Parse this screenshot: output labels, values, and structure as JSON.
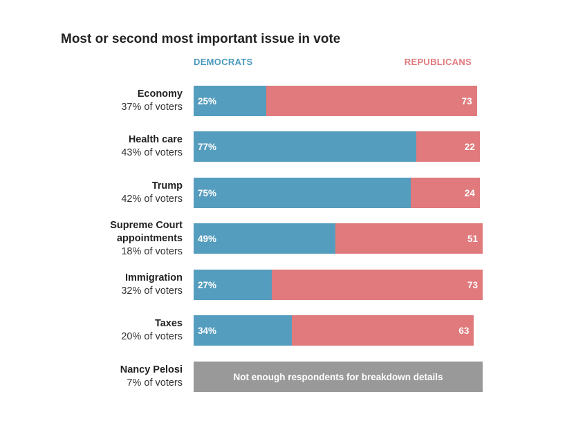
{
  "chart_data": {
    "type": "bar",
    "title": "Most or second most important issue in vote",
    "orientation": "horizontal",
    "stacked": true,
    "legend": [
      "DEMOCRATS",
      "REPUBLICANS"
    ],
    "legend_placement": "top",
    "categories": [
      {
        "name": "Economy",
        "share": "37% of voters",
        "dem": 25,
        "rep": 73,
        "dem_label": "25%",
        "rep_label": "73"
      },
      {
        "name": "Health care",
        "share": "43% of voters",
        "dem": 77,
        "rep": 22,
        "dem_label": "77%",
        "rep_label": "22"
      },
      {
        "name": "Trump",
        "share": "42% of voters",
        "dem": 75,
        "rep": 24,
        "dem_label": "75%",
        "rep_label": "24"
      },
      {
        "name": "Supreme Court appointments",
        "share": "18% of voters",
        "dem": 49,
        "rep": 51,
        "dem_label": "49%",
        "rep_label": "51"
      },
      {
        "name": "Immigration",
        "share": "32% of voters",
        "dem": 27,
        "rep": 73,
        "dem_label": "27%",
        "rep_label": "73"
      },
      {
        "name": "Taxes",
        "share": "20% of voters",
        "dem": 34,
        "rep": 63,
        "dem_label": "34%",
        "rep_label": "63"
      },
      {
        "name": "Nancy Pelosi",
        "share": "7% of voters",
        "dem": null,
        "rep": null,
        "note": "Not enough respondents for breakdown details"
      }
    ],
    "series": [
      {
        "name": "DEMOCRATS",
        "values": [
          25,
          77,
          75,
          49,
          27,
          34,
          null
        ]
      },
      {
        "name": "REPUBLICANS",
        "values": [
          73,
          22,
          24,
          51,
          73,
          63,
          null
        ]
      }
    ],
    "xlim": [
      0,
      100
    ],
    "grid": false
  },
  "colors": {
    "democrats": "#559dbe",
    "republicans": "#e07a7d",
    "no_data": "#999999",
    "dem_legend_text": "#4a98bd",
    "rep_legend_text": "#e07a7d"
  }
}
